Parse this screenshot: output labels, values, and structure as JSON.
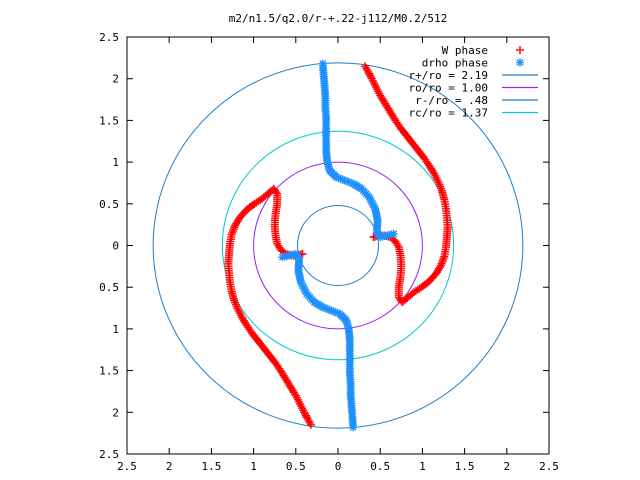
{
  "chart_data": {
    "type": "scatter",
    "title": "m2/n1.5/q2.0/r-+.22-j112/M0.2/512",
    "xlabel": "",
    "ylabel": "",
    "xlim": [
      -2.5,
      2.5
    ],
    "ylim": [
      -2.5,
      2.5
    ],
    "grid": false,
    "legend_position": "top-right",
    "x_ticks": [
      "2.5",
      "2",
      "1.5",
      "1",
      "0.5",
      "0",
      "0.5",
      "1",
      "1.5",
      "2",
      "2.5"
    ],
    "y_ticks": [
      "2.5",
      "2",
      "1.5",
      "1",
      "0.5",
      "0",
      "0.5",
      "1",
      "1.5",
      "2",
      "2.5"
    ],
    "x_tick_values": [
      -2.5,
      -2,
      -1.5,
      -1,
      -0.5,
      0,
      0.5,
      1,
      1.5,
      2,
      2.5
    ],
    "y_tick_values": [
      2.5,
      2,
      1.5,
      1,
      0.5,
      0,
      -0.5,
      -1,
      -1.5,
      -2,
      -2.5
    ],
    "series": [
      {
        "name": "W phase",
        "marker": "+",
        "color": "#ff0000",
        "points": [
          [
            0.32,
            2.15
          ],
          [
            0.36,
            2.08
          ],
          [
            0.4,
            2.0
          ],
          [
            0.45,
            1.9
          ],
          [
            0.5,
            1.8
          ],
          [
            0.56,
            1.7
          ],
          [
            0.62,
            1.6
          ],
          [
            0.68,
            1.5
          ],
          [
            0.74,
            1.41
          ],
          [
            0.81,
            1.32
          ],
          [
            0.88,
            1.23
          ],
          [
            0.95,
            1.14
          ],
          [
            1.02,
            1.05
          ],
          [
            1.08,
            0.96
          ],
          [
            1.14,
            0.86
          ],
          [
            1.19,
            0.76
          ],
          [
            1.23,
            0.66
          ],
          [
            1.26,
            0.55
          ],
          [
            1.28,
            0.44
          ],
          [
            1.29,
            0.33
          ],
          [
            1.3,
            0.22
          ],
          [
            1.29,
            0.1
          ],
          [
            1.28,
            -0.02
          ],
          [
            1.26,
            -0.13
          ],
          [
            1.22,
            -0.24
          ],
          [
            1.16,
            -0.34
          ],
          [
            1.08,
            -0.43
          ],
          [
            0.99,
            -0.5
          ],
          [
            0.9,
            -0.56
          ],
          [
            0.82,
            -0.63
          ],
          [
            0.76,
            -0.68
          ],
          [
            0.72,
            -0.62
          ],
          [
            0.72,
            -0.5
          ],
          [
            0.74,
            -0.38
          ],
          [
            0.75,
            -0.25
          ],
          [
            0.74,
            -0.12
          ],
          [
            0.72,
            -0.02
          ],
          [
            0.68,
            0.05
          ],
          [
            0.62,
            0.1
          ],
          [
            0.55,
            0.12
          ],
          [
            0.48,
            0.12
          ],
          [
            0.42,
            0.1
          ],
          [
            -0.32,
            -2.15
          ],
          [
            -0.36,
            -2.08
          ],
          [
            -0.4,
            -2.0
          ],
          [
            -0.45,
            -1.9
          ],
          [
            -0.5,
            -1.8
          ],
          [
            -0.56,
            -1.7
          ],
          [
            -0.62,
            -1.6
          ],
          [
            -0.68,
            -1.5
          ],
          [
            -0.74,
            -1.41
          ],
          [
            -0.81,
            -1.32
          ],
          [
            -0.88,
            -1.23
          ],
          [
            -0.95,
            -1.14
          ],
          [
            -1.02,
            -1.05
          ],
          [
            -1.08,
            -0.96
          ],
          [
            -1.14,
            -0.86
          ],
          [
            -1.19,
            -0.76
          ],
          [
            -1.23,
            -0.66
          ],
          [
            -1.26,
            -0.55
          ],
          [
            -1.28,
            -0.44
          ],
          [
            -1.29,
            -0.33
          ],
          [
            -1.3,
            -0.22
          ],
          [
            -1.29,
            -0.1
          ],
          [
            -1.28,
            0.02
          ],
          [
            -1.26,
            0.13
          ],
          [
            -1.22,
            0.24
          ],
          [
            -1.16,
            0.34
          ],
          [
            -1.08,
            0.43
          ],
          [
            -0.99,
            0.5
          ],
          [
            -0.9,
            0.56
          ],
          [
            -0.82,
            0.63
          ],
          [
            -0.76,
            0.68
          ],
          [
            -0.72,
            0.62
          ],
          [
            -0.72,
            0.5
          ],
          [
            -0.74,
            0.38
          ],
          [
            -0.75,
            0.25
          ],
          [
            -0.74,
            0.12
          ],
          [
            -0.72,
            0.02
          ],
          [
            -0.68,
            -0.05
          ],
          [
            -0.62,
            -0.1
          ],
          [
            -0.55,
            -0.12
          ],
          [
            -0.48,
            -0.12
          ],
          [
            -0.42,
            -0.1
          ]
        ]
      },
      {
        "name": "drho phase",
        "marker": "*",
        "color": "#1e90ff",
        "points": [
          [
            -0.18,
            2.18
          ],
          [
            -0.17,
            2.05
          ],
          [
            -0.16,
            1.92
          ],
          [
            -0.15,
            1.79
          ],
          [
            -0.15,
            1.66
          ],
          [
            -0.14,
            1.53
          ],
          [
            -0.14,
            1.4
          ],
          [
            -0.14,
            1.27
          ],
          [
            -0.14,
            1.14
          ],
          [
            -0.13,
            1.02
          ],
          [
            -0.1,
            0.9
          ],
          [
            -0.02,
            0.82
          ],
          [
            0.08,
            0.78
          ],
          [
            0.18,
            0.74
          ],
          [
            0.28,
            0.68
          ],
          [
            0.37,
            0.58
          ],
          [
            0.44,
            0.44
          ],
          [
            0.47,
            0.3
          ],
          [
            0.46,
            0.16
          ],
          [
            0.5,
            0.1
          ],
          [
            0.58,
            0.12
          ],
          [
            0.66,
            0.14
          ],
          [
            0.18,
            -2.18
          ],
          [
            0.17,
            -2.05
          ],
          [
            0.16,
            -1.92
          ],
          [
            0.15,
            -1.79
          ],
          [
            0.15,
            -1.66
          ],
          [
            0.14,
            -1.53
          ],
          [
            0.14,
            -1.4
          ],
          [
            0.14,
            -1.27
          ],
          [
            0.14,
            -1.14
          ],
          [
            0.13,
            -1.02
          ],
          [
            0.1,
            -0.9
          ],
          [
            0.02,
            -0.82
          ],
          [
            -0.08,
            -0.78
          ],
          [
            -0.18,
            -0.74
          ],
          [
            -0.28,
            -0.68
          ],
          [
            -0.37,
            -0.58
          ],
          [
            -0.44,
            -0.44
          ],
          [
            -0.47,
            -0.3
          ],
          [
            -0.46,
            -0.16
          ],
          [
            -0.5,
            -0.1
          ],
          [
            -0.58,
            -0.12
          ],
          [
            -0.66,
            -0.14
          ]
        ]
      },
      {
        "name": "r+/ro = 2.19",
        "type": "circle",
        "radius": 2.19,
        "color": "#1e7fc7"
      },
      {
        "name": "ro/ro = 1.00",
        "type": "circle",
        "radius": 1.0,
        "color": "#a020f0"
      },
      {
        "name": "r-/ro =  .48",
        "type": "circle",
        "radius": 0.48,
        "color": "#1e7fc7"
      },
      {
        "name": "rc/ro = 1.37",
        "type": "circle",
        "radius": 1.37,
        "color": "#00cccc"
      }
    ]
  }
}
